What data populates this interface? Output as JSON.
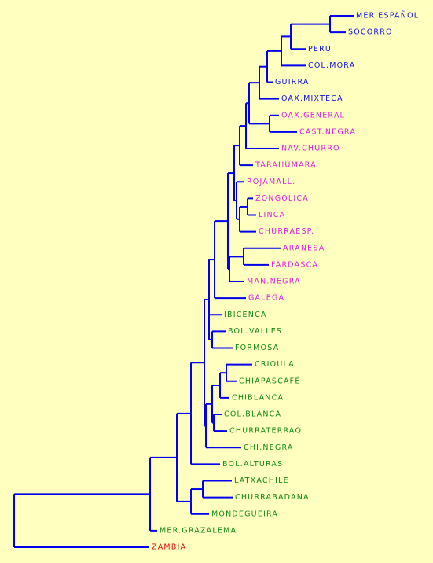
{
  "leaves": [
    {
      "label": "MER.ESPAÑOL",
      "color": "#1010e0"
    },
    {
      "label": "SOCORRO",
      "color": "#1010e0"
    },
    {
      "label": "PERÚ",
      "color": "#1010e0"
    },
    {
      "label": "COL.MORA",
      "color": "#1010e0"
    },
    {
      "label": "GUIRRA",
      "color": "#1010e0"
    },
    {
      "label": "OAX.MIXTECA",
      "color": "#1010e0"
    },
    {
      "label": "OAX.GENERAL",
      "color": "#e020e0"
    },
    {
      "label": "CAST.NEGRA",
      "color": "#e020e0"
    },
    {
      "label": "NAV.CHURRO",
      "color": "#e020e0"
    },
    {
      "label": "TARAHUMARA",
      "color": "#e020e0"
    },
    {
      "label": "ROJAMALL.",
      "color": "#e020e0"
    },
    {
      "label": "ZONGOLICA",
      "color": "#e020e0"
    },
    {
      "label": "LINCA",
      "color": "#e020e0"
    },
    {
      "label": "CHURRAESP.",
      "color": "#e020e0"
    },
    {
      "label": "ARANESA",
      "color": "#e020e0"
    },
    {
      "label": "FARDASCA",
      "color": "#e020e0"
    },
    {
      "label": "MAN.NEGRA",
      "color": "#e020e0"
    },
    {
      "label": "GALEGA",
      "color": "#e020e0"
    },
    {
      "label": "IBICENCA",
      "color": "#138a13"
    },
    {
      "label": "BOL.VALLES",
      "color": "#138a13"
    },
    {
      "label": "FORMOSA",
      "color": "#138a13"
    },
    {
      "label": "CRIOULA",
      "color": "#138a13"
    },
    {
      "label": "CHIAPASCAFÉ",
      "color": "#138a13"
    },
    {
      "label": "CHIBLANCA",
      "color": "#138a13"
    },
    {
      "label": "COL.BLANCA",
      "color": "#138a13"
    },
    {
      "label": "CHURRATERRAQ",
      "color": "#138a13"
    },
    {
      "label": "CHI.NEGRA",
      "color": "#138a13"
    },
    {
      "label": "BOL.ALTURAS",
      "color": "#138a13"
    },
    {
      "label": "LATXACHILE",
      "color": "#138a13"
    },
    {
      "label": "CHURRABADANA",
      "color": "#138a13"
    },
    {
      "label": "MONDEGUEIRA",
      "color": "#138a13"
    },
    {
      "label": "MER.GRAZALEMA",
      "color": "#138a13"
    },
    {
      "label": "ZAMBIA",
      "color": "#e01010"
    }
  ]
}
